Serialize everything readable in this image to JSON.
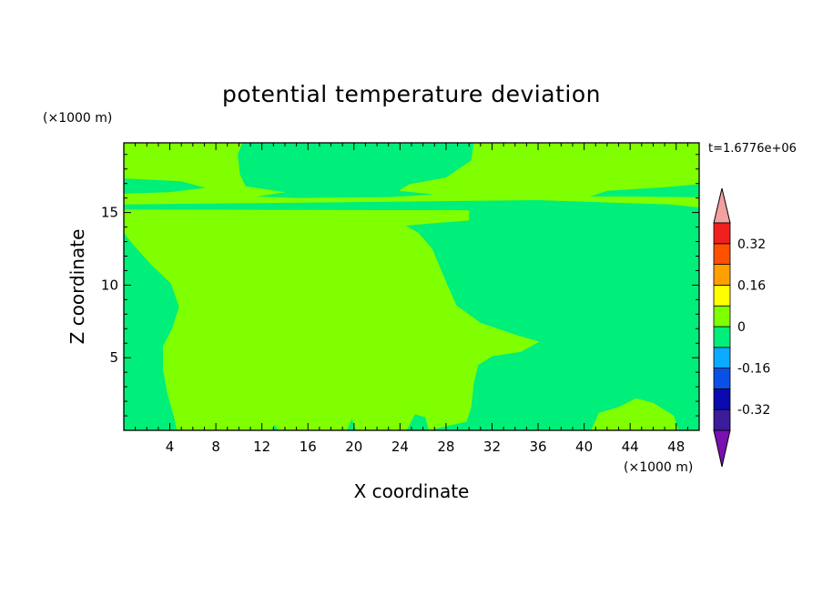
{
  "chart_data": {
    "type": "heatmap",
    "title": "potential temperature deviation",
    "xlabel": "X coordinate",
    "ylabel": "Z coordinate",
    "x_unit": "(×1000 m)",
    "y_unit": "(×1000 m)",
    "time_label": "t=1.6776e+06",
    "xlim": [
      0,
      50
    ],
    "ylim": [
      0,
      19.8
    ],
    "x_ticks": [
      "4",
      "8",
      "12",
      "16",
      "20",
      "24",
      "28",
      "32",
      "36",
      "40",
      "44",
      "48"
    ],
    "x_tick_values": [
      4,
      8,
      12,
      16,
      20,
      24,
      28,
      32,
      36,
      40,
      44,
      48
    ],
    "y_ticks": [
      "5",
      "10",
      "15"
    ],
    "y_tick_values": [
      5,
      10,
      15
    ],
    "colorbar": {
      "levels": [
        -0.4,
        -0.32,
        -0.24,
        -0.16,
        -0.08,
        0,
        0.08,
        0.16,
        0.24,
        0.32,
        0.4
      ],
      "labels": [
        "-0.32",
        "-0.16",
        "0",
        "0.16",
        "0.32"
      ],
      "label_values": [
        -0.32,
        -0.16,
        0,
        0.16,
        0.32
      ],
      "colors": [
        "#3a1b9a",
        "#0a0ab0",
        "#0a50e6",
        "#0aaaff",
        "#00ee7a",
        "#80ff00",
        "#ffff00",
        "#ffa000",
        "#ff5000",
        "#f02020"
      ],
      "under_color": "#7a10b0",
      "over_color": "#f4a0a0"
    },
    "regions": {
      "negative_color": "#00ee7a",
      "positive_color": "#80ff00",
      "positive_areas": [
        {
          "name": "main-positive-body",
          "points": [
            [
              0,
              13.6
            ],
            [
              0.9,
              12.7
            ],
            [
              2.4,
              11.4
            ],
            [
              4.1,
              10.1
            ],
            [
              4.8,
              8.5
            ],
            [
              4.2,
              7
            ],
            [
              3.4,
              5.8
            ],
            [
              3.4,
              4.2
            ],
            [
              3.8,
              2.5
            ],
            [
              4.4,
              0.8
            ],
            [
              4.6,
              0
            ],
            [
              26.5,
              0
            ],
            [
              29.8,
              0.6
            ],
            [
              30.2,
              1.6
            ],
            [
              30.4,
              3.2
            ],
            [
              30.8,
              4.5
            ],
            [
              32,
              5.1
            ],
            [
              34.5,
              5.4
            ],
            [
              36.1,
              6.1
            ],
            [
              34,
              6.6
            ],
            [
              31,
              7.4
            ],
            [
              28.9,
              8.6
            ],
            [
              27.8,
              10.6
            ],
            [
              26.8,
              12.5
            ],
            [
              25.6,
              13.6
            ],
            [
              24.5,
              14.1
            ],
            [
              27.5,
              14.3
            ],
            [
              30,
              14.45
            ],
            [
              30,
              15.15
            ],
            [
              0,
              15.2
            ]
          ]
        },
        {
          "name": "upper-positive-band",
          "points": [
            [
              0,
              15.55
            ],
            [
              12,
              15.65
            ],
            [
              24,
              15.75
            ],
            [
              36,
              15.85
            ],
            [
              47.5,
              15.55
            ],
            [
              50,
              15.35
            ],
            [
              50,
              16.05
            ],
            [
              44,
              16.1
            ],
            [
              40.5,
              16.1
            ],
            [
              42,
              16.5
            ],
            [
              47,
              16.75
            ],
            [
              50,
              16.95
            ],
            [
              50,
              19.8
            ],
            [
              30.4,
              19.8
            ],
            [
              30.2,
              18.6
            ],
            [
              28,
              17.4
            ],
            [
              24.8,
              16.95
            ],
            [
              23.9,
              16.5
            ],
            [
              27,
              16.25
            ],
            [
              23,
              16.05
            ],
            [
              15,
              16
            ],
            [
              11.5,
              16.1
            ],
            [
              14,
              16.4
            ],
            [
              10.6,
              16.8
            ],
            [
              10.1,
              17.6
            ],
            [
              9.9,
              19
            ],
            [
              10.3,
              19.8
            ],
            [
              0,
              19.8
            ],
            [
              0,
              17.35
            ],
            [
              5,
              17.15
            ],
            [
              7.1,
              16.7
            ],
            [
              4,
              16.4
            ],
            [
              0,
              16.3
            ]
          ]
        },
        {
          "name": "surface-blob-a",
          "points": [
            [
              15.2,
              0
            ],
            [
              15.5,
              1.6
            ],
            [
              16.4,
              2.6
            ],
            [
              17,
              2.4
            ],
            [
              17,
              1.5
            ],
            [
              16.7,
              0
            ]
          ]
        },
        {
          "name": "surface-blob-b",
          "points": [
            [
              12.8,
              0
            ],
            [
              13,
              0.6
            ],
            [
              13.3,
              0
            ]
          ]
        },
        {
          "name": "surface-blob-c",
          "points": [
            [
              16.9,
              0
            ],
            [
              17,
              0.4
            ],
            [
              17.2,
              0
            ]
          ]
        }
      ],
      "negative_areas": [
        {
          "name": "surface-bubble-a",
          "points": [
            [
              24.6,
              0
            ],
            [
              25.3,
              1.1
            ],
            [
              26.2,
              0.9
            ],
            [
              26.5,
              0
            ]
          ]
        },
        {
          "name": "surface-bubble-b",
          "points": [
            [
              19.4,
              0
            ],
            [
              19.8,
              0.8
            ],
            [
              20.2,
              0
            ]
          ]
        },
        {
          "name": "surface-bubble-c",
          "points": [
            [
              0,
              0
            ],
            [
              0,
              0.9
            ],
            [
              0.9,
              0.5
            ],
            [
              1,
              0
            ]
          ]
        },
        {
          "name": "surface-bubble-d",
          "points": [
            [
              12.9,
              0
            ],
            [
              13.1,
              0.4
            ],
            [
              13.4,
              0
            ]
          ]
        }
      ],
      "positive_surface_areas": [
        {
          "name": "right-surface-positive",
          "points": [
            [
              40.6,
              0
            ],
            [
              41.3,
              1.2
            ],
            [
              43,
              1.6
            ],
            [
              44.5,
              2.2
            ],
            [
              46,
              1.9
            ],
            [
              47.8,
              1
            ],
            [
              48.2,
              0
            ]
          ]
        }
      ]
    }
  }
}
